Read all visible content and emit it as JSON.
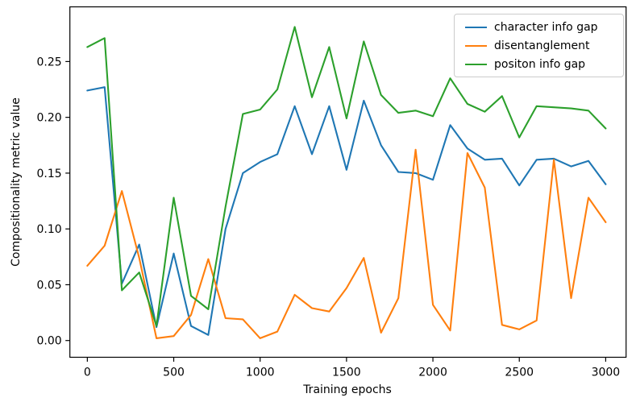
{
  "figure": {
    "background": "#ffffff"
  },
  "chart_data": {
    "type": "line",
    "title": "",
    "xlabel": "Training epochs",
    "ylabel": "Compositionality metric value",
    "x": [
      0,
      100,
      200,
      300,
      400,
      500,
      600,
      700,
      800,
      900,
      1000,
      1100,
      1200,
      1300,
      1400,
      1500,
      1600,
      1700,
      1800,
      1900,
      2000,
      2100,
      2200,
      2300,
      2400,
      2500,
      2600,
      2700,
      2800,
      2900,
      3000
    ],
    "series": [
      {
        "name": "character info gap",
        "color": "#1f77b4",
        "values": [
          0.224,
          0.227,
          0.051,
          0.086,
          0.012,
          0.078,
          0.013,
          0.005,
          0.1,
          0.15,
          0.16,
          0.167,
          0.21,
          0.167,
          0.21,
          0.153,
          0.215,
          0.175,
          0.151,
          0.15,
          0.144,
          0.193,
          0.172,
          0.162,
          0.163,
          0.139,
          0.162,
          0.163,
          0.156,
          0.161,
          0.14
        ]
      },
      {
        "name": "disentanglement",
        "color": "#ff7f0e",
        "values": [
          0.067,
          0.085,
          0.134,
          0.074,
          0.002,
          0.004,
          0.023,
          0.073,
          0.02,
          0.019,
          0.002,
          0.008,
          0.041,
          0.029,
          0.026,
          0.047,
          0.074,
          0.007,
          0.038,
          0.171,
          0.032,
          0.009,
          0.168,
          0.137,
          0.014,
          0.01,
          0.018,
          0.162,
          0.038,
          0.128,
          0.106
        ]
      },
      {
        "name": "positon info gap",
        "color": "#2ca02c",
        "values": [
          0.263,
          0.271,
          0.045,
          0.061,
          0.013,
          0.128,
          0.04,
          0.028,
          0.12,
          0.203,
          0.207,
          0.225,
          0.281,
          0.218,
          0.263,
          0.199,
          0.268,
          0.22,
          0.204,
          0.206,
          0.201,
          0.235,
          0.212,
          0.205,
          0.219,
          0.182,
          0.21,
          0.209,
          0.208,
          0.206,
          0.19
        ]
      }
    ],
    "xticks": [
      0,
      500,
      1000,
      1500,
      2000,
      2500,
      3000
    ],
    "ytick_labels": [
      "0.00",
      "0.05",
      "0.10",
      "0.15",
      "0.20",
      "0.25"
    ],
    "ytick_values": [
      0,
      0.05,
      0.1,
      0.15,
      0.2,
      0.25
    ],
    "xlim": [
      -101,
      3118
    ],
    "ylim": [
      -0.015,
      0.299
    ],
    "grid": false,
    "legend_position": "upper right",
    "line_width": 2.1
  }
}
